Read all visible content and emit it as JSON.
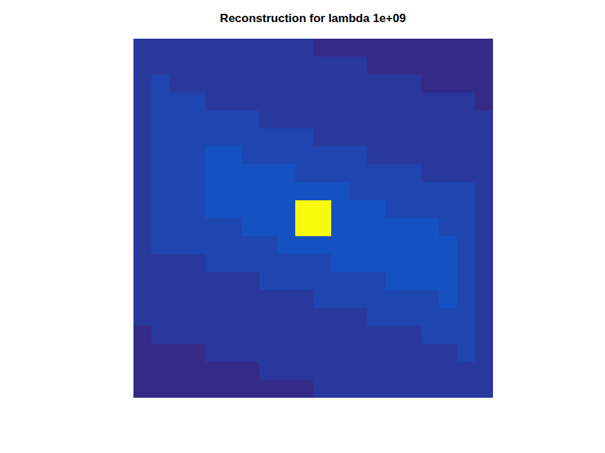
{
  "chart_data": {
    "type": "heatmap",
    "title": "Reconstruction for lambda 1e+09",
    "tick_labels": false,
    "zlim": [
      0,
      1
    ],
    "cells": [
      [
        0.03,
        0.03,
        0.03,
        0.03,
        0.03,
        0.03,
        0.03,
        0.03,
        0.03,
        0.03,
        0,
        0,
        0,
        0,
        0,
        0,
        0,
        0,
        0,
        0
      ],
      [
        0.03,
        0.03,
        0.03,
        0.03,
        0.03,
        0.03,
        0.03,
        0.03,
        0.03,
        0.03,
        0.03,
        0.03,
        0.03,
        0,
        0,
        0,
        0,
        0,
        0,
        0
      ],
      [
        0.03,
        0.06,
        0.03,
        0.03,
        0.03,
        0.03,
        0.03,
        0.03,
        0.03,
        0.03,
        0.03,
        0.03,
        0.03,
        0.03,
        0.03,
        0.03,
        0,
        0,
        0,
        0
      ],
      [
        0.03,
        0.06,
        0.06,
        0.06,
        0.03,
        0.03,
        0.03,
        0.03,
        0.03,
        0.03,
        0.03,
        0.03,
        0.03,
        0.03,
        0.03,
        0.03,
        0.03,
        0.03,
        0.03,
        0
      ],
      [
        0.03,
        0.06,
        0.06,
        0.06,
        0.06,
        0.06,
        0.06,
        0.03,
        0.03,
        0.03,
        0.03,
        0.03,
        0.03,
        0.03,
        0.03,
        0.03,
        0.03,
        0.03,
        0.03,
        0.03
      ],
      [
        0.03,
        0.06,
        0.06,
        0.06,
        0.06,
        0.06,
        0.06,
        0.06,
        0.06,
        0.06,
        0.03,
        0.03,
        0.03,
        0.03,
        0.03,
        0.03,
        0.03,
        0.03,
        0.03,
        0.03
      ],
      [
        0.03,
        0.06,
        0.06,
        0.06,
        0.09,
        0.09,
        0.06,
        0.06,
        0.06,
        0.06,
        0.06,
        0.06,
        0.06,
        0.03,
        0.03,
        0.03,
        0.03,
        0.03,
        0.03,
        0.03
      ],
      [
        0.03,
        0.06,
        0.06,
        0.06,
        0.09,
        0.09,
        0.09,
        0.09,
        0.09,
        0.06,
        0.06,
        0.06,
        0.06,
        0.06,
        0.06,
        0.06,
        0.03,
        0.03,
        0.03,
        0.03
      ],
      [
        0.03,
        0.06,
        0.06,
        0.06,
        0.09,
        0.09,
        0.09,
        0.09,
        0.09,
        0.09,
        0.09,
        0.09,
        0.06,
        0.06,
        0.06,
        0.06,
        0.06,
        0.06,
        0.06,
        0.03
      ],
      [
        0.03,
        0.06,
        0.06,
        0.06,
        0.09,
        0.09,
        0.09,
        0.09,
        0.09,
        1,
        1,
        0.09,
        0.09,
        0.09,
        0.06,
        0.06,
        0.06,
        0.06,
        0.06,
        0.03
      ],
      [
        0.03,
        0.06,
        0.06,
        0.06,
        0.06,
        0.06,
        0.09,
        0.09,
        0.09,
        1,
        1,
        0.09,
        0.09,
        0.09,
        0.09,
        0.09,
        0.09,
        0.06,
        0.06,
        0.03
      ],
      [
        0.03,
        0.06,
        0.06,
        0.06,
        0.06,
        0.06,
        0.06,
        0.06,
        0.09,
        0.09,
        0.09,
        0.09,
        0.09,
        0.09,
        0.09,
        0.09,
        0.09,
        0.09,
        0.06,
        0.03
      ],
      [
        0.03,
        0.03,
        0.03,
        0.03,
        0.06,
        0.06,
        0.06,
        0.06,
        0.06,
        0.06,
        0.06,
        0.09,
        0.09,
        0.09,
        0.09,
        0.09,
        0.09,
        0.09,
        0.06,
        0.03
      ],
      [
        0.03,
        0.03,
        0.03,
        0.03,
        0.03,
        0.03,
        0.03,
        0.06,
        0.06,
        0.06,
        0.06,
        0.06,
        0.06,
        0.06,
        0.09,
        0.09,
        0.09,
        0.09,
        0.06,
        0.03
      ],
      [
        0.03,
        0.03,
        0.03,
        0.03,
        0.03,
        0.03,
        0.03,
        0.03,
        0.03,
        0.03,
        0.06,
        0.06,
        0.06,
        0.06,
        0.06,
        0.06,
        0.06,
        0.09,
        0.06,
        0.03
      ],
      [
        0.03,
        0.03,
        0.03,
        0.03,
        0.03,
        0.03,
        0.03,
        0.03,
        0.03,
        0.03,
        0.03,
        0.03,
        0.03,
        0.06,
        0.06,
        0.06,
        0.06,
        0.06,
        0.06,
        0.03
      ],
      [
        0,
        0.03,
        0.03,
        0.03,
        0.03,
        0.03,
        0.03,
        0.03,
        0.03,
        0.03,
        0.03,
        0.03,
        0.03,
        0.03,
        0.03,
        0.03,
        0.06,
        0.06,
        0.06,
        0.03
      ],
      [
        0,
        0,
        0,
        0,
        0.03,
        0.03,
        0.03,
        0.03,
        0.03,
        0.03,
        0.03,
        0.03,
        0.03,
        0.03,
        0.03,
        0.03,
        0.03,
        0.03,
        0.06,
        0.03
      ],
      [
        0,
        0,
        0,
        0,
        0,
        0,
        0,
        0.03,
        0.03,
        0.03,
        0.03,
        0.03,
        0.03,
        0.03,
        0.03,
        0.03,
        0.03,
        0.03,
        0.03,
        0.03
      ],
      [
        0,
        0,
        0,
        0,
        0,
        0,
        0,
        0,
        0,
        0,
        0.03,
        0.03,
        0.03,
        0.03,
        0.03,
        0.03,
        0.03,
        0.03,
        0.03,
        0.03
      ]
    ]
  }
}
